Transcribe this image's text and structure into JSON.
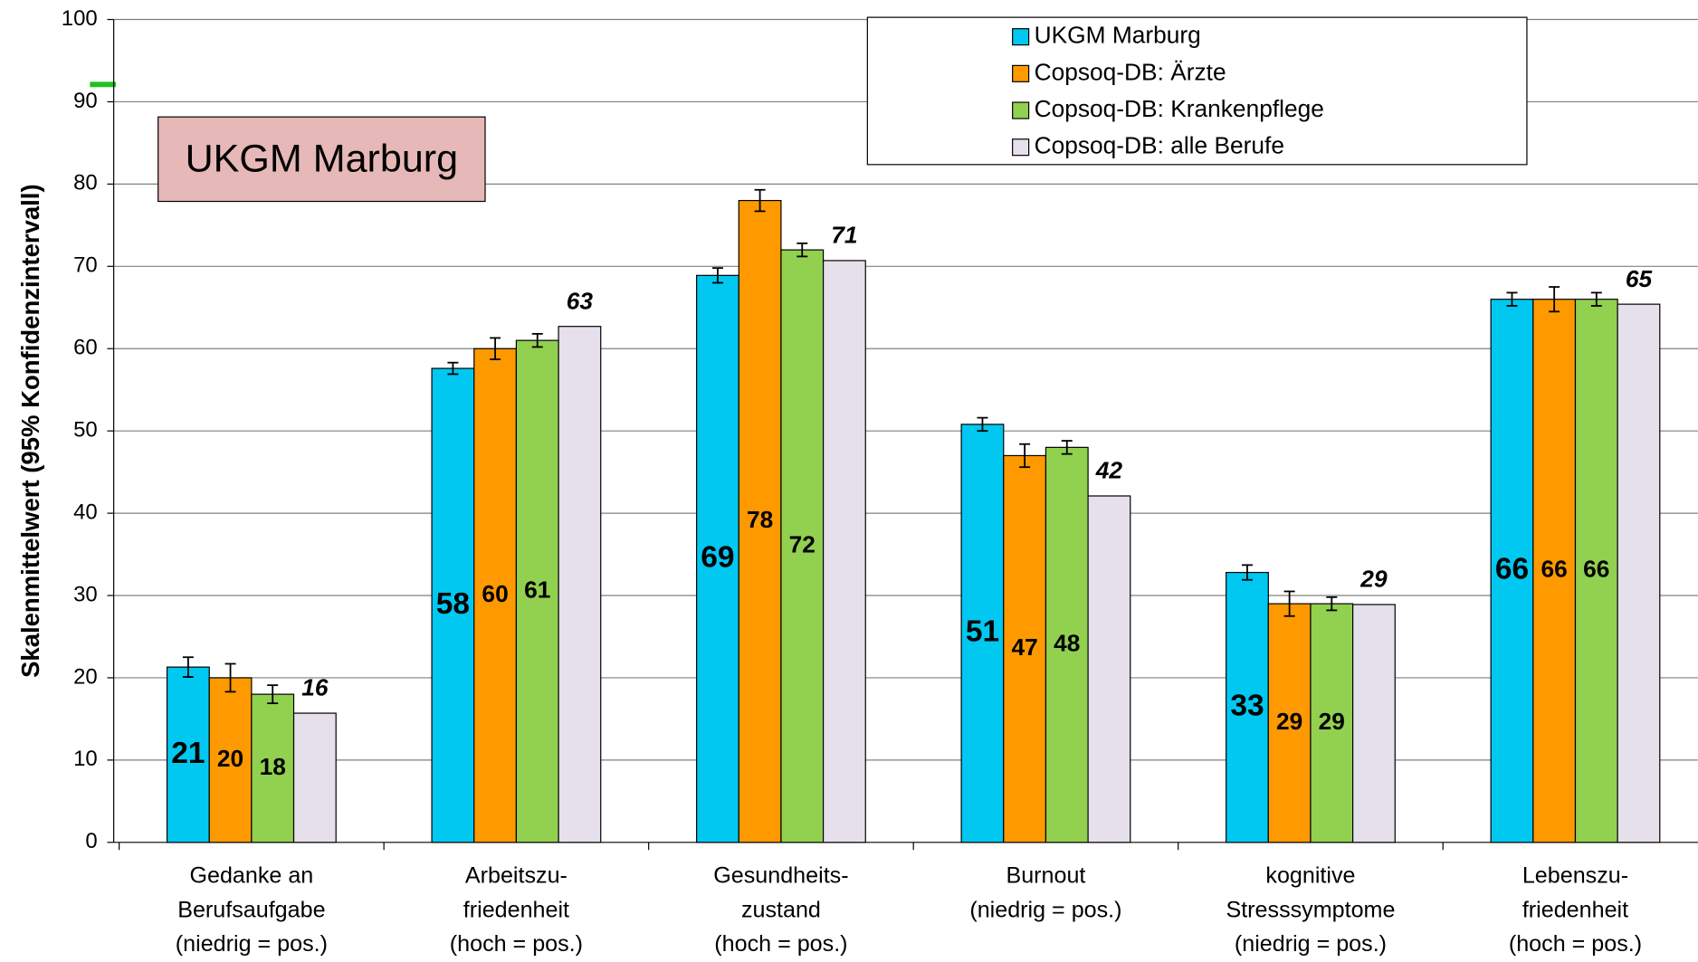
{
  "chart_data": {
    "type": "bar",
    "y_label": "Skalenmittelwert (95% Konfidenzintervall)",
    "annotation": "UKGM Marburg",
    "categories": [
      [
        "Gedanke an",
        "Berufsaufgabe",
        "(niedrig = pos.)"
      ],
      [
        "Arbeitszu-",
        "friedenheit",
        "(hoch = pos.)"
      ],
      [
        "Gesundheits-",
        "zustand",
        "(hoch = pos.)"
      ],
      [
        "Burnout",
        "(niedrig = pos.)"
      ],
      [
        "kognitive",
        "Stresssymptome",
        "(niedrig = pos.)"
      ],
      [
        "Lebenszu-",
        "friedenheit",
        "(hoch = pos.)"
      ]
    ],
    "series": [
      {
        "name": "UKGM Marburg",
        "color": "#00c8f0",
        "values": [
          21.3,
          57.6,
          68.9,
          50.8,
          32.8,
          66.0
        ],
        "errors": [
          1.2,
          0.7,
          0.9,
          0.8,
          0.9,
          0.8
        ],
        "value_labels": [
          "21",
          "58",
          "69",
          "51",
          "33",
          "66"
        ]
      },
      {
        "name": "Copsoq-DB: Ärzte",
        "color": "#ff9900",
        "values": [
          20.0,
          60.0,
          78.0,
          47.0,
          29.0,
          66.0
        ],
        "errors": [
          1.7,
          1.3,
          1.3,
          1.4,
          1.5,
          1.5
        ],
        "value_labels": [
          "20",
          "60",
          "78",
          "47",
          "29",
          "66"
        ]
      },
      {
        "name": "Copsoq-DB: Krankenpflege",
        "color": "#92d050",
        "values": [
          18.0,
          61.0,
          72.0,
          48.0,
          29.0,
          66.0
        ],
        "errors": [
          1.1,
          0.8,
          0.8,
          0.8,
          0.8,
          0.8
        ],
        "value_labels": [
          "18",
          "61",
          "72",
          "48",
          "29",
          "66"
        ]
      },
      {
        "name": "Copsoq-DB: alle Berufe",
        "color": "#e6e0ec",
        "values": [
          15.7,
          62.7,
          70.7,
          42.1,
          28.9,
          65.4
        ],
        "value_labels": [
          "16",
          "63",
          "71",
          "42",
          "29",
          "65"
        ]
      }
    ],
    "ylim": [
      0,
      100
    ],
    "yticks": [
      0,
      10,
      20,
      30,
      40,
      50,
      60,
      70,
      80,
      90,
      100
    ],
    "grid": true,
    "legend": "top-right"
  }
}
